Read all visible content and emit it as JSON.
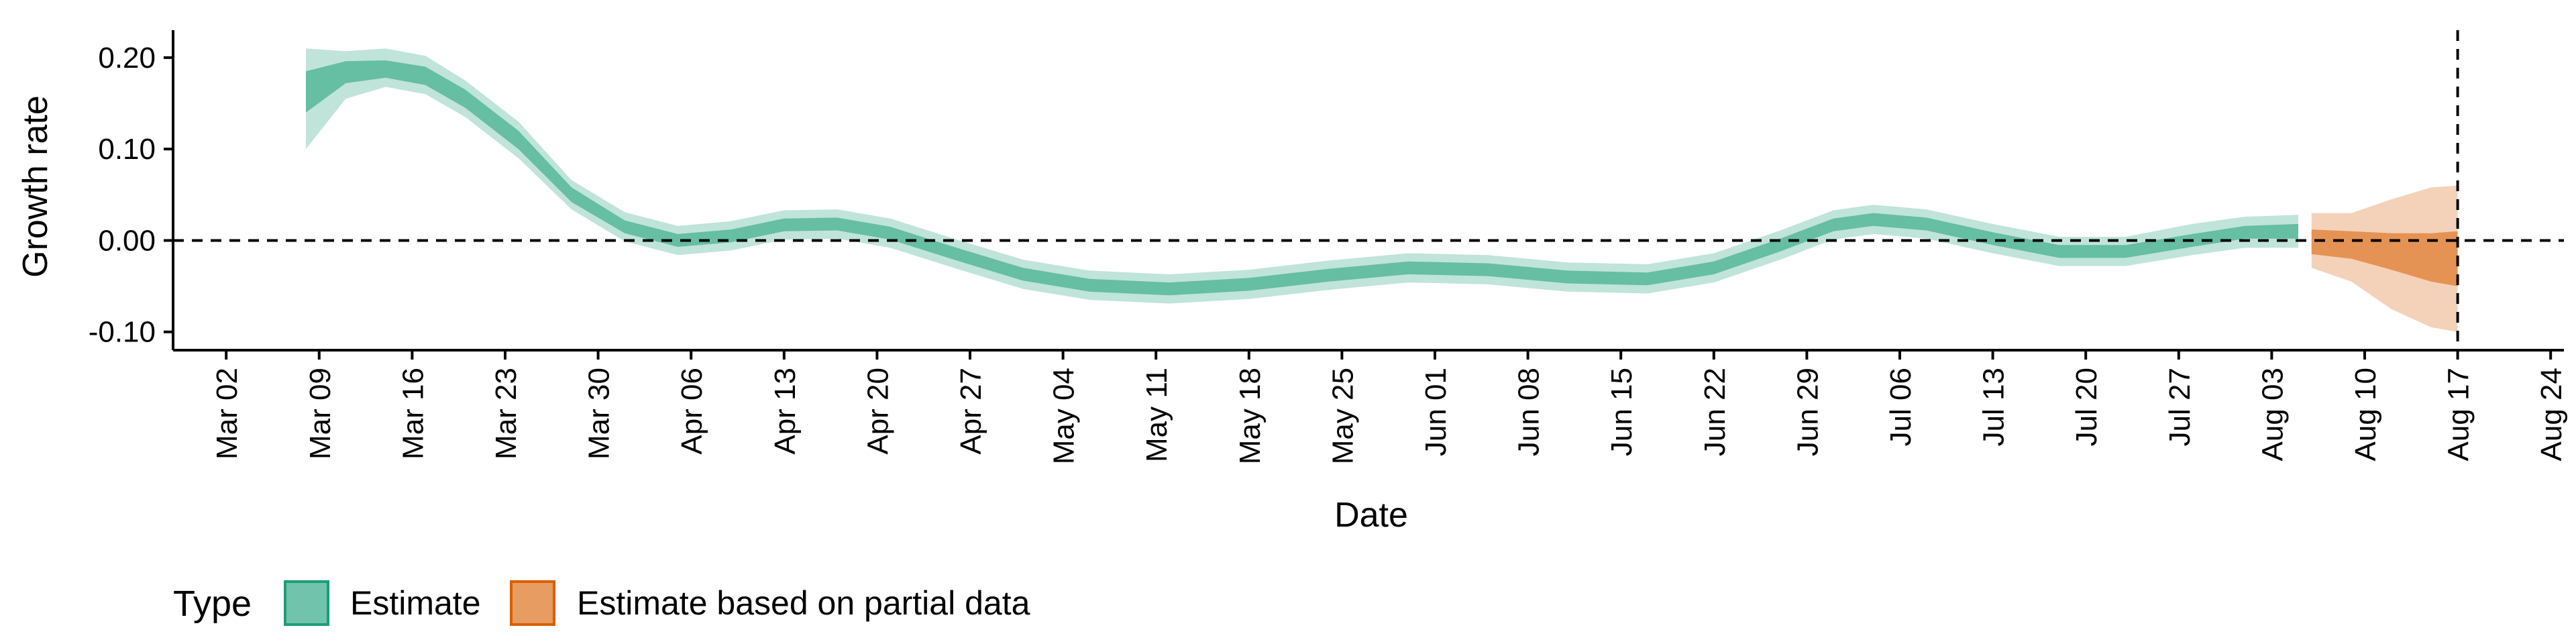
{
  "chart_data": {
    "type": "area",
    "xlabel": "Date",
    "ylabel": "Growth rate",
    "ylim": [
      -0.12,
      0.23
    ],
    "y_ticks": [
      -0.1,
      0.0,
      0.1,
      0.2
    ],
    "y_tick_labels": [
      "-0.10",
      "0.00",
      "0.10",
      "0.20"
    ],
    "x_domain": [
      "2020-02-27",
      "2020-08-25"
    ],
    "x_ticks": [
      "2020-03-02",
      "2020-03-09",
      "2020-03-16",
      "2020-03-23",
      "2020-03-30",
      "2020-04-06",
      "2020-04-13",
      "2020-04-20",
      "2020-04-27",
      "2020-05-04",
      "2020-05-11",
      "2020-05-18",
      "2020-05-25",
      "2020-06-01",
      "2020-06-08",
      "2020-06-15",
      "2020-06-22",
      "2020-06-29",
      "2020-07-06",
      "2020-07-13",
      "2020-07-20",
      "2020-07-27",
      "2020-08-03",
      "2020-08-10",
      "2020-08-17",
      "2020-08-24"
    ],
    "x_tick_labels": [
      "Mar 02",
      "Mar 09",
      "Mar 16",
      "Mar 23",
      "Mar 30",
      "Apr 06",
      "Apr 13",
      "Apr 20",
      "Apr 27",
      "May 04",
      "May 11",
      "May 18",
      "May 25",
      "Jun 01",
      "Jun 08",
      "Jun 15",
      "Jun 22",
      "Jun 29",
      "Jul 06",
      "Jul 13",
      "Jul 20",
      "Jul 27",
      "Aug 03",
      "Aug 10",
      "Aug 17",
      "Aug 24"
    ],
    "hline_y": 0,
    "vline_x": "2020-08-17",
    "grid": false,
    "legend_position": "bottom-left",
    "legend_title": "Type",
    "series": [
      {
        "name": "Estimate",
        "color": "#1b9e77",
        "points": [
          {
            "x": "2020-03-08",
            "median": 0.165,
            "lo50": 0.14,
            "hi50": 0.185,
            "lo90": 0.1,
            "hi90": 0.21
          },
          {
            "x": "2020-03-11",
            "median": 0.183,
            "lo50": 0.172,
            "hi50": 0.196,
            "lo90": 0.155,
            "hi90": 0.207
          },
          {
            "x": "2020-03-14",
            "median": 0.187,
            "lo50": 0.178,
            "hi50": 0.197,
            "lo90": 0.168,
            "hi90": 0.21
          },
          {
            "x": "2020-03-17",
            "median": 0.18,
            "lo50": 0.17,
            "hi50": 0.19,
            "lo90": 0.16,
            "hi90": 0.202
          },
          {
            "x": "2020-03-20",
            "median": 0.155,
            "lo50": 0.145,
            "hi50": 0.165,
            "lo90": 0.135,
            "hi90": 0.175
          },
          {
            "x": "2020-03-24",
            "median": 0.11,
            "lo50": 0.1,
            "hi50": 0.12,
            "lo90": 0.09,
            "hi90": 0.13
          },
          {
            "x": "2020-03-28",
            "median": 0.05,
            "lo50": 0.042,
            "hi50": 0.058,
            "lo90": 0.034,
            "hi90": 0.066
          },
          {
            "x": "2020-04-01",
            "median": 0.015,
            "lo50": 0.008,
            "hi50": 0.022,
            "lo90": -0.001,
            "hi90": 0.031
          },
          {
            "x": "2020-04-05",
            "median": 0.0,
            "lo50": -0.007,
            "hi50": 0.007,
            "lo90": -0.016,
            "hi90": 0.016
          },
          {
            "x": "2020-04-09",
            "median": 0.005,
            "lo50": -0.002,
            "hi50": 0.012,
            "lo90": -0.011,
            "hi90": 0.021
          },
          {
            "x": "2020-04-13",
            "median": 0.017,
            "lo50": 0.01,
            "hi50": 0.024,
            "lo90": 0.001,
            "hi90": 0.033
          },
          {
            "x": "2020-04-17",
            "median": 0.018,
            "lo50": 0.011,
            "hi50": 0.025,
            "lo90": 0.002,
            "hi90": 0.034
          },
          {
            "x": "2020-04-21",
            "median": 0.008,
            "lo50": 0.001,
            "hi50": 0.015,
            "lo90": -0.008,
            "hi90": 0.024
          },
          {
            "x": "2020-04-26",
            "median": -0.015,
            "lo50": -0.022,
            "hi50": -0.008,
            "lo90": -0.031,
            "hi90": 0.001
          },
          {
            "x": "2020-05-01",
            "median": -0.037,
            "lo50": -0.044,
            "hi50": -0.03,
            "lo90": -0.053,
            "hi90": -0.021
          },
          {
            "x": "2020-05-06",
            "median": -0.049,
            "lo50": -0.056,
            "hi50": -0.042,
            "lo90": -0.065,
            "hi90": -0.033
          },
          {
            "x": "2020-05-12",
            "median": -0.053,
            "lo50": -0.06,
            "hi50": -0.046,
            "lo90": -0.069,
            "hi90": -0.037
          },
          {
            "x": "2020-05-18",
            "median": -0.048,
            "lo50": -0.055,
            "hi50": -0.041,
            "lo90": -0.064,
            "hi90": -0.032
          },
          {
            "x": "2020-05-24",
            "median": -0.038,
            "lo50": -0.045,
            "hi50": -0.031,
            "lo90": -0.054,
            "hi90": -0.022
          },
          {
            "x": "2020-05-30",
            "median": -0.03,
            "lo50": -0.037,
            "hi50": -0.023,
            "lo90": -0.046,
            "hi90": -0.014
          },
          {
            "x": "2020-06-05",
            "median": -0.032,
            "lo50": -0.039,
            "hi50": -0.025,
            "lo90": -0.048,
            "hi90": -0.016
          },
          {
            "x": "2020-06-11",
            "median": -0.04,
            "lo50": -0.047,
            "hi50": -0.033,
            "lo90": -0.056,
            "hi90": -0.024
          },
          {
            "x": "2020-06-17",
            "median": -0.042,
            "lo50": -0.049,
            "hi50": -0.035,
            "lo90": -0.058,
            "hi90": -0.026
          },
          {
            "x": "2020-06-22",
            "median": -0.03,
            "lo50": -0.037,
            "hi50": -0.023,
            "lo90": -0.046,
            "hi90": -0.014
          },
          {
            "x": "2020-06-27",
            "median": -0.005,
            "lo50": -0.012,
            "hi50": 0.002,
            "lo90": -0.021,
            "hi90": 0.011
          },
          {
            "x": "2020-07-01",
            "median": 0.017,
            "lo50": 0.01,
            "hi50": 0.024,
            "lo90": 0.001,
            "hi90": 0.033
          },
          {
            "x": "2020-07-04",
            "median": 0.023,
            "lo50": 0.016,
            "hi50": 0.03,
            "lo90": 0.007,
            "hi90": 0.039
          },
          {
            "x": "2020-07-08",
            "median": 0.018,
            "lo50": 0.011,
            "hi50": 0.025,
            "lo90": 0.002,
            "hi90": 0.034
          },
          {
            "x": "2020-07-13",
            "median": 0.002,
            "lo50": -0.005,
            "hi50": 0.009,
            "lo90": -0.014,
            "hi90": 0.018
          },
          {
            "x": "2020-07-18",
            "median": -0.012,
            "lo50": -0.019,
            "hi50": -0.005,
            "lo90": -0.028,
            "hi90": 0.004
          },
          {
            "x": "2020-07-23",
            "median": -0.012,
            "lo50": -0.019,
            "hi50": -0.005,
            "lo90": -0.028,
            "hi90": 0.004
          },
          {
            "x": "2020-07-28",
            "median": 0.0,
            "lo50": -0.007,
            "hi50": 0.007,
            "lo90": -0.016,
            "hi90": 0.018
          },
          {
            "x": "2020-08-01",
            "median": 0.009,
            "lo50": 0.002,
            "hi50": 0.016,
            "lo90": -0.008,
            "hi90": 0.026
          },
          {
            "x": "2020-08-05",
            "median": 0.01,
            "lo50": 0.002,
            "hi50": 0.018,
            "lo90": -0.008,
            "hi90": 0.028
          }
        ]
      },
      {
        "name": "Estimate based on partial data",
        "color": "#d95f02",
        "points": [
          {
            "x": "2020-08-06",
            "median": 0.0,
            "lo50": -0.015,
            "hi50": 0.012,
            "lo90": -0.03,
            "hi90": 0.03
          },
          {
            "x": "2020-08-09",
            "median": -0.005,
            "lo50": -0.02,
            "hi50": 0.01,
            "lo90": -0.045,
            "hi90": 0.03
          },
          {
            "x": "2020-08-12",
            "median": -0.012,
            "lo50": -0.032,
            "hi50": 0.008,
            "lo90": -0.075,
            "hi90": 0.045
          },
          {
            "x": "2020-08-15",
            "median": -0.018,
            "lo50": -0.045,
            "hi50": 0.008,
            "lo90": -0.095,
            "hi90": 0.058
          },
          {
            "x": "2020-08-17",
            "median": -0.02,
            "lo50": -0.05,
            "hi50": 0.01,
            "lo90": -0.1,
            "hi90": 0.06
          }
        ]
      }
    ]
  }
}
